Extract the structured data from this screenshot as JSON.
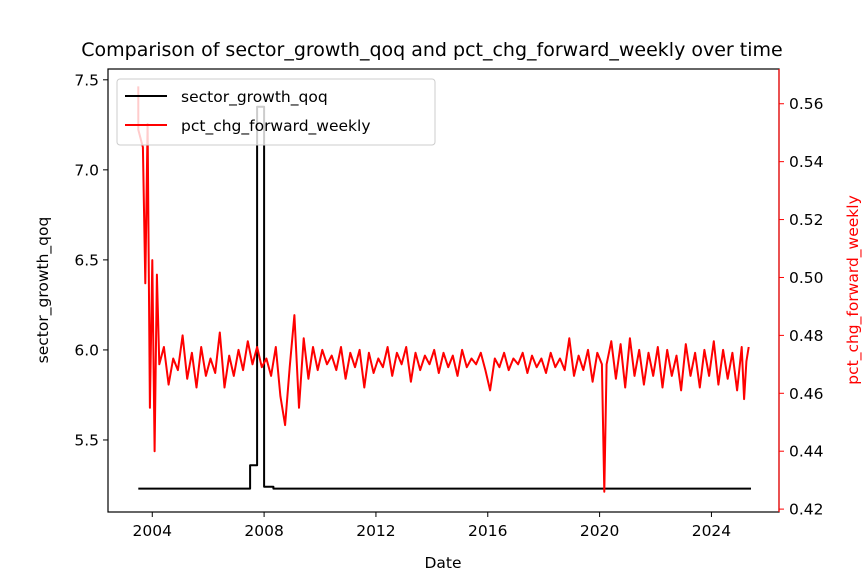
{
  "chart_data": {
    "type": "line",
    "title": "Comparison of sector_growth_qoq and pct_chg_forward_weekly over time",
    "xlabel": "Date",
    "ylabel_left": "sector_growth_qoq",
    "ylabel_right": "pct_chg_forward_weekly",
    "xlim": [
      "2002-06",
      "2026-06"
    ],
    "ylim_left": [
      5.1,
      7.56
    ],
    "ylim_right": [
      0.419,
      0.572
    ],
    "x_ticks": [
      "2004",
      "2008",
      "2012",
      "2016",
      "2020",
      "2024"
    ],
    "y_ticks_left": [
      "5.5",
      "6.0",
      "6.5",
      "7.0",
      "7.5"
    ],
    "y_ticks_right": [
      "0.42",
      "0.44",
      "0.46",
      "0.48",
      "0.50",
      "0.52",
      "0.54",
      "0.56"
    ],
    "grid": false,
    "legend_location": "upper left",
    "series": [
      {
        "name": "sector_growth_qoq",
        "axis": "left",
        "color": "#000000",
        "points": [
          [
            "2003-07",
            5.23
          ],
          [
            "2007-07",
            5.23
          ],
          [
            "2007-07",
            5.36
          ],
          [
            "2007-10",
            5.36
          ],
          [
            "2007-10",
            7.35
          ],
          [
            "2008-01",
            7.35
          ],
          [
            "2008-01",
            5.24
          ],
          [
            "2008-05",
            5.24
          ],
          [
            "2008-05",
            5.23
          ],
          [
            "2025-06",
            5.23
          ]
        ]
      },
      {
        "name": "pct_chg_forward_weekly",
        "axis": "right",
        "color": "#ff0000",
        "points": [
          [
            "2003-07",
            0.566
          ],
          [
            "2003-07",
            0.551
          ],
          [
            "2003-09",
            0.545
          ],
          [
            "2003-10",
            0.498
          ],
          [
            "2003-11",
            0.553
          ],
          [
            "2003-12",
            0.455
          ],
          [
            "2004-01",
            0.506
          ],
          [
            "2004-02",
            0.44
          ],
          [
            "2004-03",
            0.501
          ],
          [
            "2004-04",
            0.47
          ],
          [
            "2004-06",
            0.476
          ],
          [
            "2004-08",
            0.463
          ],
          [
            "2004-10",
            0.472
          ],
          [
            "2004-12",
            0.468
          ],
          [
            "2005-02",
            0.48
          ],
          [
            "2005-04",
            0.465
          ],
          [
            "2005-06",
            0.474
          ],
          [
            "2005-08",
            0.462
          ],
          [
            "2005-10",
            0.476
          ],
          [
            "2005-12",
            0.466
          ],
          [
            "2006-02",
            0.472
          ],
          [
            "2006-04",
            0.467
          ],
          [
            "2006-06",
            0.481
          ],
          [
            "2006-08",
            0.462
          ],
          [
            "2006-10",
            0.473
          ],
          [
            "2006-12",
            0.466
          ],
          [
            "2007-02",
            0.475
          ],
          [
            "2007-04",
            0.468
          ],
          [
            "2007-06",
            0.478
          ],
          [
            "2007-08",
            0.47
          ],
          [
            "2007-10",
            0.476
          ],
          [
            "2007-12",
            0.469
          ],
          [
            "2008-02",
            0.472
          ],
          [
            "2008-04",
            0.466
          ],
          [
            "2008-06",
            0.476
          ],
          [
            "2008-08",
            0.459
          ],
          [
            "2008-10",
            0.449
          ],
          [
            "2008-12",
            0.469
          ],
          [
            "2009-02",
            0.487
          ],
          [
            "2009-04",
            0.455
          ],
          [
            "2009-06",
            0.479
          ],
          [
            "2009-08",
            0.465
          ],
          [
            "2009-10",
            0.476
          ],
          [
            "2009-12",
            0.468
          ],
          [
            "2010-02",
            0.475
          ],
          [
            "2010-04",
            0.47
          ],
          [
            "2010-06",
            0.473
          ],
          [
            "2010-08",
            0.468
          ],
          [
            "2010-10",
            0.476
          ],
          [
            "2010-12",
            0.465
          ],
          [
            "2011-02",
            0.474
          ],
          [
            "2011-04",
            0.469
          ],
          [
            "2011-06",
            0.475
          ],
          [
            "2011-08",
            0.462
          ],
          [
            "2011-10",
            0.474
          ],
          [
            "2011-12",
            0.467
          ],
          [
            "2012-02",
            0.472
          ],
          [
            "2012-04",
            0.469
          ],
          [
            "2012-06",
            0.476
          ],
          [
            "2012-08",
            0.466
          ],
          [
            "2012-10",
            0.474
          ],
          [
            "2012-12",
            0.47
          ],
          [
            "2013-02",
            0.476
          ],
          [
            "2013-04",
            0.464
          ],
          [
            "2013-06",
            0.474
          ],
          [
            "2013-08",
            0.468
          ],
          [
            "2013-10",
            0.473
          ],
          [
            "2013-12",
            0.47
          ],
          [
            "2014-02",
            0.475
          ],
          [
            "2014-04",
            0.467
          ],
          [
            "2014-06",
            0.474
          ],
          [
            "2014-08",
            0.469
          ],
          [
            "2014-10",
            0.473
          ],
          [
            "2014-12",
            0.466
          ],
          [
            "2015-02",
            0.475
          ],
          [
            "2015-04",
            0.469
          ],
          [
            "2015-06",
            0.472
          ],
          [
            "2015-08",
            0.47
          ],
          [
            "2015-10",
            0.474
          ],
          [
            "2015-12",
            0.468
          ],
          [
            "2016-02",
            0.461
          ],
          [
            "2016-04",
            0.472
          ],
          [
            "2016-06",
            0.469
          ],
          [
            "2016-08",
            0.474
          ],
          [
            "2016-10",
            0.468
          ],
          [
            "2016-12",
            0.472
          ],
          [
            "2017-02",
            0.47
          ],
          [
            "2017-04",
            0.474
          ],
          [
            "2017-06",
            0.467
          ],
          [
            "2017-08",
            0.473
          ],
          [
            "2017-10",
            0.469
          ],
          [
            "2017-12",
            0.472
          ],
          [
            "2018-02",
            0.467
          ],
          [
            "2018-04",
            0.474
          ],
          [
            "2018-06",
            0.469
          ],
          [
            "2018-08",
            0.472
          ],
          [
            "2018-10",
            0.468
          ],
          [
            "2018-12",
            0.479
          ],
          [
            "2019-02",
            0.466
          ],
          [
            "2019-04",
            0.473
          ],
          [
            "2019-06",
            0.468
          ],
          [
            "2019-08",
            0.475
          ],
          [
            "2019-10",
            0.464
          ],
          [
            "2019-12",
            0.474
          ],
          [
            "2020-02",
            0.47
          ],
          [
            "2020-03",
            0.426
          ],
          [
            "2020-04",
            0.47
          ],
          [
            "2020-06",
            0.478
          ],
          [
            "2020-08",
            0.465
          ],
          [
            "2020-10",
            0.477
          ],
          [
            "2020-12",
            0.462
          ],
          [
            "2021-02",
            0.479
          ],
          [
            "2021-04",
            0.466
          ],
          [
            "2021-06",
            0.475
          ],
          [
            "2021-08",
            0.463
          ],
          [
            "2021-10",
            0.474
          ],
          [
            "2021-12",
            0.466
          ],
          [
            "2022-02",
            0.476
          ],
          [
            "2022-04",
            0.462
          ],
          [
            "2022-06",
            0.475
          ],
          [
            "2022-08",
            0.466
          ],
          [
            "2022-10",
            0.473
          ],
          [
            "2022-12",
            0.461
          ],
          [
            "2023-02",
            0.477
          ],
          [
            "2023-04",
            0.466
          ],
          [
            "2023-06",
            0.474
          ],
          [
            "2023-08",
            0.462
          ],
          [
            "2023-10",
            0.475
          ],
          [
            "2023-12",
            0.466
          ],
          [
            "2024-02",
            0.478
          ],
          [
            "2024-04",
            0.463
          ],
          [
            "2024-06",
            0.475
          ],
          [
            "2024-08",
            0.465
          ],
          [
            "2024-10",
            0.474
          ],
          [
            "2024-12",
            0.461
          ],
          [
            "2025-02",
            0.476
          ],
          [
            "2025-03",
            0.458
          ],
          [
            "2025-04",
            0.471
          ],
          [
            "2025-05",
            0.476
          ]
        ]
      }
    ]
  }
}
